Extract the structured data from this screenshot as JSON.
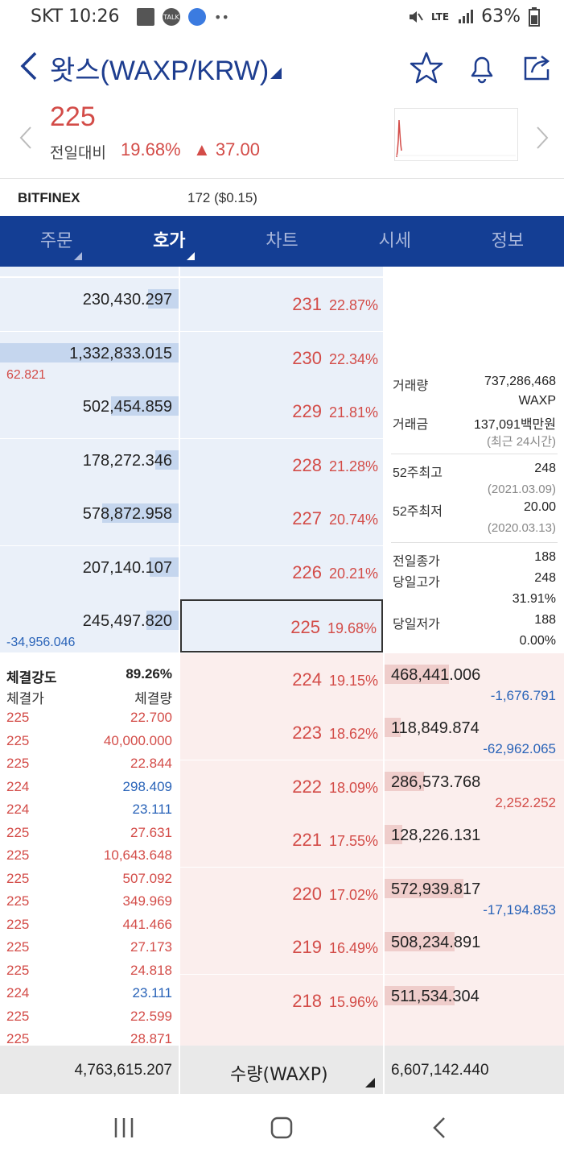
{
  "status_bar": {
    "carrier_time": "SKT 10:26",
    "talk_badge": "TALK",
    "dots": "••",
    "battery": "63%",
    "signal_text": "LTE"
  },
  "header": {
    "title": "왓스(WAXP/KRW)"
  },
  "price": {
    "current": "225",
    "compare_label": "전일대비",
    "rate": "19.68%",
    "delta": "▲ 37.00"
  },
  "exchange": {
    "name": "BITFINEX",
    "value": "172 ($0.15)"
  },
  "tabs": [
    {
      "label": "주문"
    },
    {
      "label": "호가"
    },
    {
      "label": "차트"
    },
    {
      "label": "시세"
    },
    {
      "label": "정보"
    }
  ],
  "asks": [
    {
      "price": "231",
      "rate": "22.87%",
      "volume": "230,430.297",
      "bar": 0.17,
      "change": ""
    },
    {
      "price": "230",
      "rate": "22.34%",
      "volume": "1,332,833.015",
      "bar": 1.0,
      "change": "62.821"
    },
    {
      "price": "229",
      "rate": "21.81%",
      "volume": "502,454.859",
      "bar": 0.38,
      "change": ""
    },
    {
      "price": "228",
      "rate": "21.28%",
      "volume": "178,272.346",
      "bar": 0.13,
      "change": ""
    },
    {
      "price": "227",
      "rate": "20.74%",
      "volume": "578,872.958",
      "bar": 0.43,
      "change": ""
    },
    {
      "price": "226",
      "rate": "20.21%",
      "volume": "207,140.107",
      "bar": 0.16,
      "change": ""
    },
    {
      "price": "225",
      "rate": "19.68%",
      "volume": "245,497.820",
      "bar": 0.18,
      "change": "-34,956.046"
    }
  ],
  "bids": [
    {
      "price": "224",
      "rate": "19.15%",
      "volume": "468,441.006",
      "bar": 0.36,
      "change": "-1,676.791",
      "change_color": "blue"
    },
    {
      "price": "223",
      "rate": "18.62%",
      "volume": "118,849.874",
      "bar": 0.09,
      "change": "-62,962.065",
      "change_color": "blue"
    },
    {
      "price": "222",
      "rate": "18.09%",
      "volume": "286,573.768",
      "bar": 0.22,
      "change": "2,252.252",
      "change_color": "red"
    },
    {
      "price": "221",
      "rate": "17.55%",
      "volume": "128,226.131",
      "bar": 0.1,
      "change": "",
      "change_color": "red"
    },
    {
      "price": "220",
      "rate": "17.02%",
      "volume": "572,939.817",
      "bar": 0.44,
      "change": "-17,194.853",
      "change_color": "blue"
    },
    {
      "price": "219",
      "rate": "16.49%",
      "volume": "508,234.891",
      "bar": 0.39,
      "change": "",
      "change_color": "red"
    },
    {
      "price": "218",
      "rate": "15.96%",
      "volume": "511,534.304",
      "bar": 0.39,
      "change": "",
      "change_color": "red"
    }
  ],
  "info": {
    "volume_label": "거래량",
    "volume_value": "737,286,468",
    "volume_unit": "WAXP",
    "amount_label": "거래금",
    "amount_value": "137,091백만원",
    "amount_note": "(최근 24시간)",
    "high52_label": "52주최고",
    "high52_value": "248",
    "high52_date": "(2021.03.09)",
    "low52_label": "52주최저",
    "low52_value": "20.00",
    "low52_date": "(2020.03.13)",
    "prev_close_label": "전일종가",
    "prev_close_value": "188",
    "day_high_label": "당일고가",
    "day_high_value": "248",
    "day_high_rate": "31.91%",
    "day_low_label": "당일저가",
    "day_low_value": "188",
    "day_low_rate": "0.00%"
  },
  "trades": {
    "strength_label": "체결강도",
    "strength_value": "89.26%",
    "price_header": "체결가",
    "qty_header": "체결량",
    "rows": [
      {
        "price": "225",
        "qty": "22.700",
        "color": "red"
      },
      {
        "price": "225",
        "qty": "40,000.000",
        "color": "red"
      },
      {
        "price": "225",
        "qty": "22.844",
        "color": "red"
      },
      {
        "price": "224",
        "qty": "298.409",
        "color": "blue"
      },
      {
        "price": "224",
        "qty": "23.111",
        "color": "blue"
      },
      {
        "price": "225",
        "qty": "27.631",
        "color": "red"
      },
      {
        "price": "225",
        "qty": "10,643.648",
        "color": "red"
      },
      {
        "price": "225",
        "qty": "507.092",
        "color": "red"
      },
      {
        "price": "225",
        "qty": "349.969",
        "color": "red"
      },
      {
        "price": "225",
        "qty": "441.466",
        "color": "red"
      },
      {
        "price": "225",
        "qty": "27.173",
        "color": "red"
      },
      {
        "price": "225",
        "qty": "24.818",
        "color": "red"
      },
      {
        "price": "224",
        "qty": "23.111",
        "color": "blue"
      },
      {
        "price": "225",
        "qty": "22.599",
        "color": "red"
      },
      {
        "price": "225",
        "qty": "28.871",
        "color": "red"
      }
    ]
  },
  "totals": {
    "ask_total": "4,763,615.207",
    "unit_label": "수량(WAXP)",
    "bid_total": "6,607,142.440"
  },
  "colors": {
    "up": "#d34c48",
    "down": "#2963b8",
    "tab_bar": "#143e94"
  }
}
